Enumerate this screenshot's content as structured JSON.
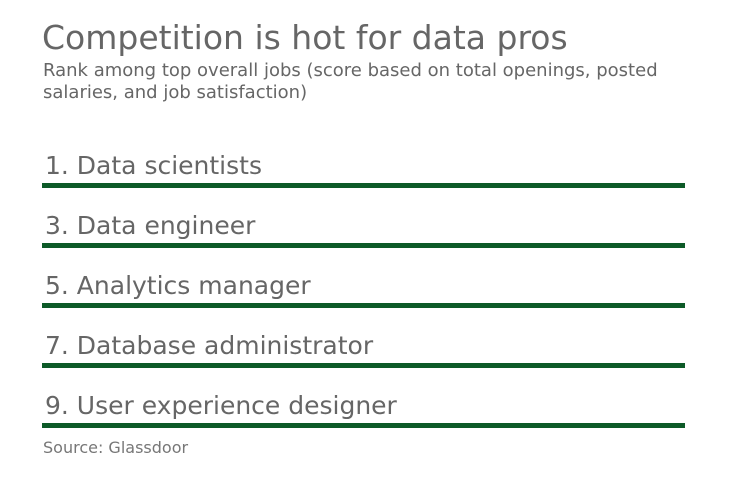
{
  "title": "Competition is hot for data pros",
  "subtitle": "Rank among top overall jobs (score based on total openings, posted salaries, and job satisfaction)",
  "items": [
    "1. Data scientists",
    "3. Data engineer",
    "5. Analytics manager",
    "7. Database administrator",
    "9. User experience designer"
  ],
  "source": "Source: Glassdoor"
}
